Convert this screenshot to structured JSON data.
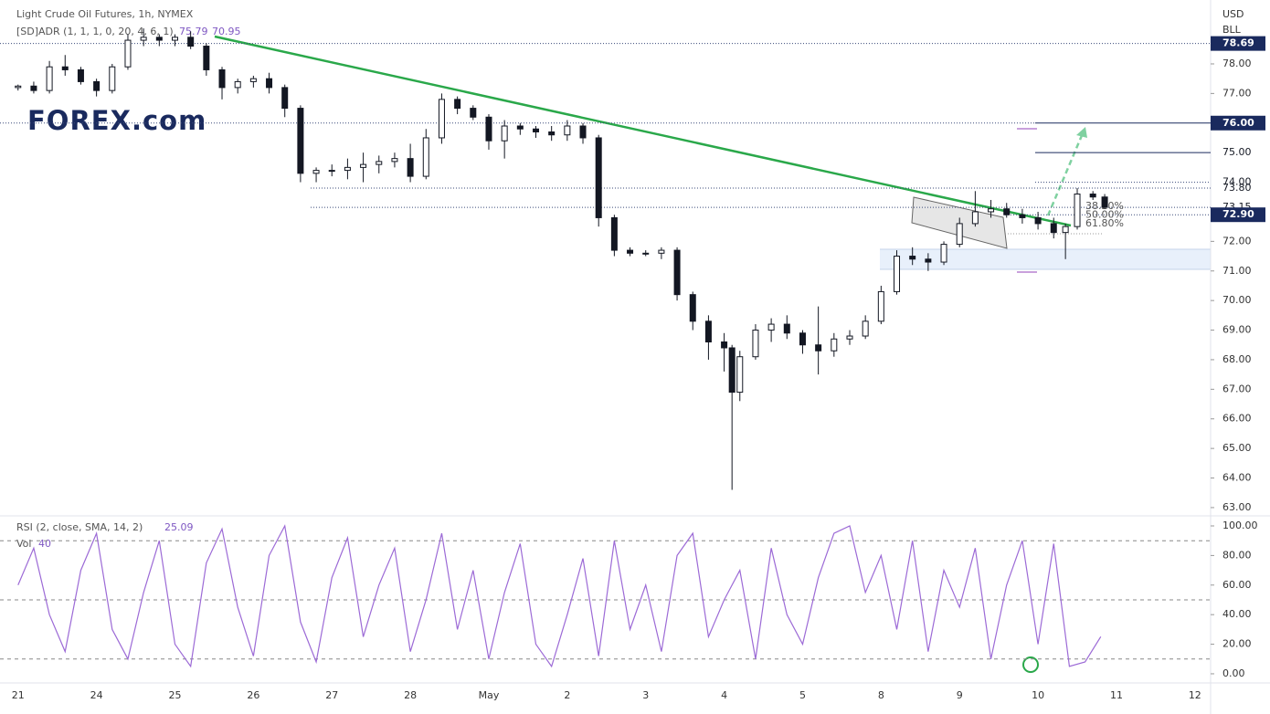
{
  "chart_data": [
    {
      "type": "candlestick",
      "title": "Light Crude Oil Futures, 1h, NYMEX",
      "indicator": "[SD]ADR (1, 1, 1, 0, 20, 4, 6, 1)",
      "indicator_values": [
        "75.79",
        "70.95"
      ],
      "logo": "FOREX.com",
      "currency": "USD",
      "unit": "BLL",
      "up_color": "#ffffff",
      "down_color": "#131722",
      "categories": [
        "21",
        "24",
        "25",
        "26",
        "27",
        "28",
        "May",
        "2",
        "3",
        "4",
        "5",
        "8",
        "9",
        "10",
        "11",
        "12"
      ],
      "xlim": [
        -0.23,
        15.2
      ],
      "ylim": [
        62.72,
        80.16
      ],
      "yticks": [
        {
          "value": 63,
          "label": "63.00"
        },
        {
          "value": 64,
          "label": "64.00"
        },
        {
          "value": 65,
          "label": "65.00"
        },
        {
          "value": 66,
          "label": "66.00"
        },
        {
          "value": 67,
          "label": "67.00"
        },
        {
          "value": 68,
          "label": "68.00"
        },
        {
          "value": 69,
          "label": "69.00"
        },
        {
          "value": 70,
          "label": "70.00"
        },
        {
          "value": 71,
          "label": "71.00"
        },
        {
          "value": 72,
          "label": "72.00"
        },
        {
          "value": 77,
          "label": "77.00"
        },
        {
          "value": 78,
          "label": "78.00"
        }
      ],
      "price_labels": [
        {
          "value": 78.69,
          "label": "78.69",
          "highlight": true
        },
        {
          "value": 76,
          "label": "76.00",
          "highlight": true
        },
        {
          "value": 75,
          "label": "75.00",
          "highlight": false
        },
        {
          "value": 74,
          "label": "74.00",
          "highlight": false
        },
        {
          "value": 73.8,
          "label": "73.80",
          "highlight": false
        },
        {
          "value": 73.15,
          "label": "73.15",
          "highlight": false
        },
        {
          "value": 72.9,
          "label": "72.90",
          "highlight": true
        }
      ],
      "fib_labels": [
        "38.20%",
        "50.00%",
        "61.80%"
      ],
      "x": [
        0,
        0.2,
        0.4,
        0.6,
        0.8,
        1,
        1.2,
        1.4,
        1.6,
        1.8,
        2,
        2.2,
        2.4,
        2.6,
        2.8,
        3,
        3.2,
        3.4,
        3.6,
        3.8,
        4,
        4.2,
        4.4,
        4.6,
        4.8,
        5,
        5.2,
        5.4,
        5.6,
        5.8,
        6,
        6.2,
        6.4,
        6.6,
        6.8,
        7,
        7.2,
        7.4,
        7.6,
        7.8,
        8,
        8.2,
        8.4,
        8.6,
        8.8,
        9,
        9.1,
        9.2,
        9.4,
        9.6,
        9.8,
        10,
        10.2,
        10.4,
        10.6,
        10.8,
        11,
        11.2,
        11.4,
        11.6,
        11.8,
        12,
        12.2,
        12.4,
        12.6,
        12.8,
        13,
        13.2,
        13.35,
        13.5,
        13.7,
        13.85
      ],
      "open": [
        77.2,
        77.25,
        77.1,
        77.9,
        77.8,
        77.4,
        77.1,
        77.9,
        78.8,
        78.9,
        78.8,
        78.9,
        78.6,
        77.8,
        77.2,
        77.4,
        77.5,
        77.2,
        76.5,
        74.3,
        74.4,
        74.4,
        74.5,
        74.6,
        74.7,
        74.8,
        74.2,
        75.5,
        76.8,
        76.5,
        76.2,
        75.4,
        75.9,
        75.8,
        75.7,
        75.6,
        75.9,
        75.5,
        72.8,
        71.7,
        71.6,
        71.6,
        71.7,
        70.2,
        69.3,
        68.6,
        68.4,
        66.9,
        68.1,
        69.0,
        69.2,
        68.9,
        68.5,
        68.3,
        68.7,
        68.8,
        69.3,
        70.3,
        71.5,
        71.4,
        71.3,
        71.9,
        72.6,
        73.0,
        73.1,
        72.9,
        72.8,
        72.6,
        72.3,
        72.5,
        73.6,
        73.5
      ],
      "high": [
        77.3,
        77.4,
        78.1,
        78.3,
        77.9,
        77.5,
        78.0,
        79.0,
        79.2,
        79.0,
        79.0,
        79.1,
        78.7,
        77.9,
        77.5,
        77.6,
        77.7,
        77.3,
        76.6,
        74.5,
        74.6,
        74.8,
        75.0,
        74.9,
        75.0,
        75.3,
        75.8,
        77.0,
        76.9,
        76.6,
        76.3,
        76.1,
        76.0,
        75.9,
        75.9,
        76.1,
        76.0,
        75.6,
        72.9,
        71.8,
        71.7,
        71.8,
        71.8,
        70.3,
        69.5,
        68.9,
        68.5,
        68.3,
        69.2,
        69.4,
        69.5,
        69.0,
        69.8,
        68.9,
        69.0,
        69.5,
        70.5,
        71.7,
        71.8,
        71.6,
        72.0,
        72.8,
        73.7,
        73.4,
        73.3,
        73.1,
        73.0,
        72.8,
        72.6,
        73.8,
        73.7,
        73.6
      ],
      "low": [
        77.1,
        77.0,
        77.0,
        77.6,
        77.3,
        76.9,
        77.0,
        77.8,
        78.6,
        78.6,
        78.6,
        78.5,
        77.6,
        76.8,
        77.0,
        77.2,
        77.0,
        76.2,
        74.0,
        74.0,
        74.2,
        74.1,
        74.0,
        74.3,
        74.5,
        74.0,
        74.1,
        75.3,
        76.3,
        76.1,
        75.1,
        74.8,
        75.6,
        75.5,
        75.4,
        75.4,
        75.3,
        72.5,
        71.5,
        71.5,
        71.5,
        71.4,
        70.0,
        69.0,
        68.0,
        67.6,
        63.6,
        66.6,
        68.0,
        68.6,
        68.7,
        68.2,
        67.5,
        68.1,
        68.5,
        68.7,
        69.2,
        70.2,
        71.2,
        71.0,
        71.2,
        71.8,
        72.5,
        72.8,
        72.8,
        72.6,
        72.4,
        72.1,
        71.4,
        72.4,
        73.4,
        73.1
      ],
      "close": [
        77.25,
        77.1,
        77.9,
        77.8,
        77.4,
        77.1,
        77.9,
        78.8,
        78.9,
        78.8,
        78.9,
        78.6,
        77.8,
        77.2,
        77.4,
        77.5,
        77.2,
        76.5,
        74.3,
        74.4,
        74.4,
        74.5,
        74.6,
        74.7,
        74.8,
        74.2,
        75.5,
        76.8,
        76.5,
        76.2,
        75.4,
        75.9,
        75.8,
        75.7,
        75.6,
        75.9,
        75.5,
        72.8,
        71.7,
        71.6,
        71.6,
        71.7,
        70.2,
        69.3,
        68.6,
        68.4,
        66.9,
        68.1,
        69.0,
        69.2,
        68.9,
        68.5,
        68.3,
        68.7,
        68.8,
        69.3,
        70.3,
        71.5,
        71.4,
        71.3,
        71.9,
        72.6,
        73.0,
        73.1,
        72.9,
        72.8,
        72.6,
        72.3,
        72.5,
        73.6,
        73.5,
        73.15
      ]
    },
    {
      "type": "line",
      "title": "RSI (2, close, SMA, 14, 2)",
      "last_value": "25.09",
      "volume_title": "Vol",
      "volume_value": "40",
      "color": "#9c6ad6",
      "xlim": [
        -0.23,
        15.2
      ],
      "ylim": [
        -6.2,
        106.8
      ],
      "yticks": [
        {
          "value": 0,
          "label": "0.00"
        },
        {
          "value": 20,
          "label": "20.00"
        },
        {
          "value": 40,
          "label": "40.00"
        },
        {
          "value": 60,
          "label": "60.00"
        },
        {
          "value": 80,
          "label": "80.00"
        },
        {
          "value": 100,
          "label": "100.00"
        }
      ],
      "levels": [
        90,
        50,
        10
      ],
      "x": [
        0,
        0.2,
        0.4,
        0.6,
        0.8,
        1,
        1.2,
        1.4,
        1.6,
        1.8,
        2,
        2.2,
        2.4,
        2.6,
        2.8,
        3,
        3.2,
        3.4,
        3.6,
        3.8,
        4,
        4.2,
        4.4,
        4.6,
        4.8,
        5,
        5.2,
        5.4,
        5.6,
        5.8,
        6,
        6.2,
        6.4,
        6.6,
        6.8,
        7,
        7.2,
        7.4,
        7.6,
        7.8,
        8,
        8.2,
        8.4,
        8.6,
        8.8,
        9,
        9.2,
        9.4,
        9.6,
        9.8,
        10,
        10.2,
        10.4,
        10.6,
        10.8,
        11,
        11.2,
        11.4,
        11.6,
        11.8,
        12,
        12.2,
        12.4,
        12.6,
        12.8,
        13,
        13.2,
        13.4,
        13.6,
        13.8
      ],
      "values": [
        60,
        85,
        40,
        15,
        70,
        95,
        30,
        10,
        55,
        90,
        20,
        5,
        75,
        98,
        45,
        12,
        80,
        100,
        35,
        8,
        65,
        92,
        25,
        60,
        85,
        15,
        50,
        95,
        30,
        70,
        10,
        55,
        88,
        20,
        5,
        40,
        78,
        12,
        90,
        30,
        60,
        15,
        80,
        95,
        25,
        50,
        70,
        10,
        85,
        40,
        20,
        65,
        95,
        100,
        55,
        80,
        30,
        90,
        15,
        70,
        45,
        85,
        10,
        60,
        90,
        20,
        88,
        5,
        8,
        25.09
      ]
    }
  ]
}
